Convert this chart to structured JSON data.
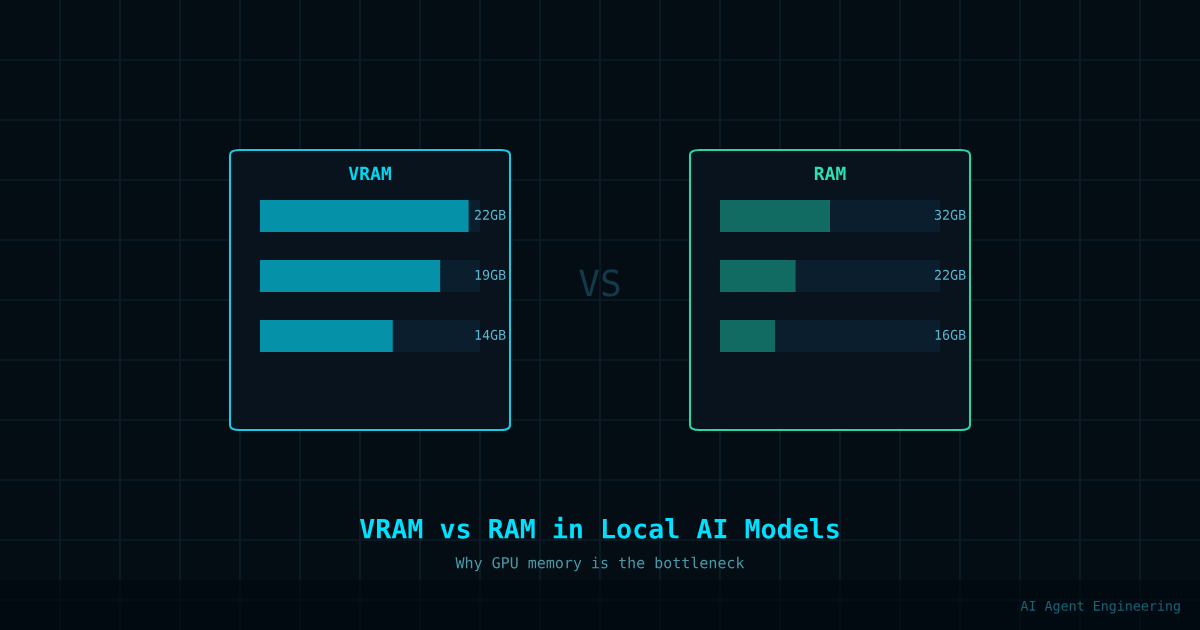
{
  "chart_data": [
    {
      "type": "bar",
      "orientation": "horizontal",
      "title": "VRAM",
      "categories": [
        null,
        null,
        null
      ],
      "values": [
        22,
        19,
        14
      ],
      "value_labels": [
        "22GB",
        "19GB",
        "14GB"
      ],
      "color": "#0592a8",
      "xlim": [
        0,
        23.2
      ]
    },
    {
      "type": "bar",
      "orientation": "horizontal",
      "title": "RAM",
      "categories": [
        null,
        null,
        null
      ],
      "values": [
        32,
        22,
        16
      ],
      "value_labels": [
        "32GB",
        "22GB",
        "16GB"
      ],
      "color": "#116b62",
      "xlim": [
        0,
        64
      ]
    },
    {
      "type": "other",
      "title": "VRAM vs RAM in Local AI Models",
      "subtitle": "Why GPU memory is the bottleneck",
      "annotations": [
        "VS",
        "AI Agent Engineering"
      ]
    }
  ]
}
